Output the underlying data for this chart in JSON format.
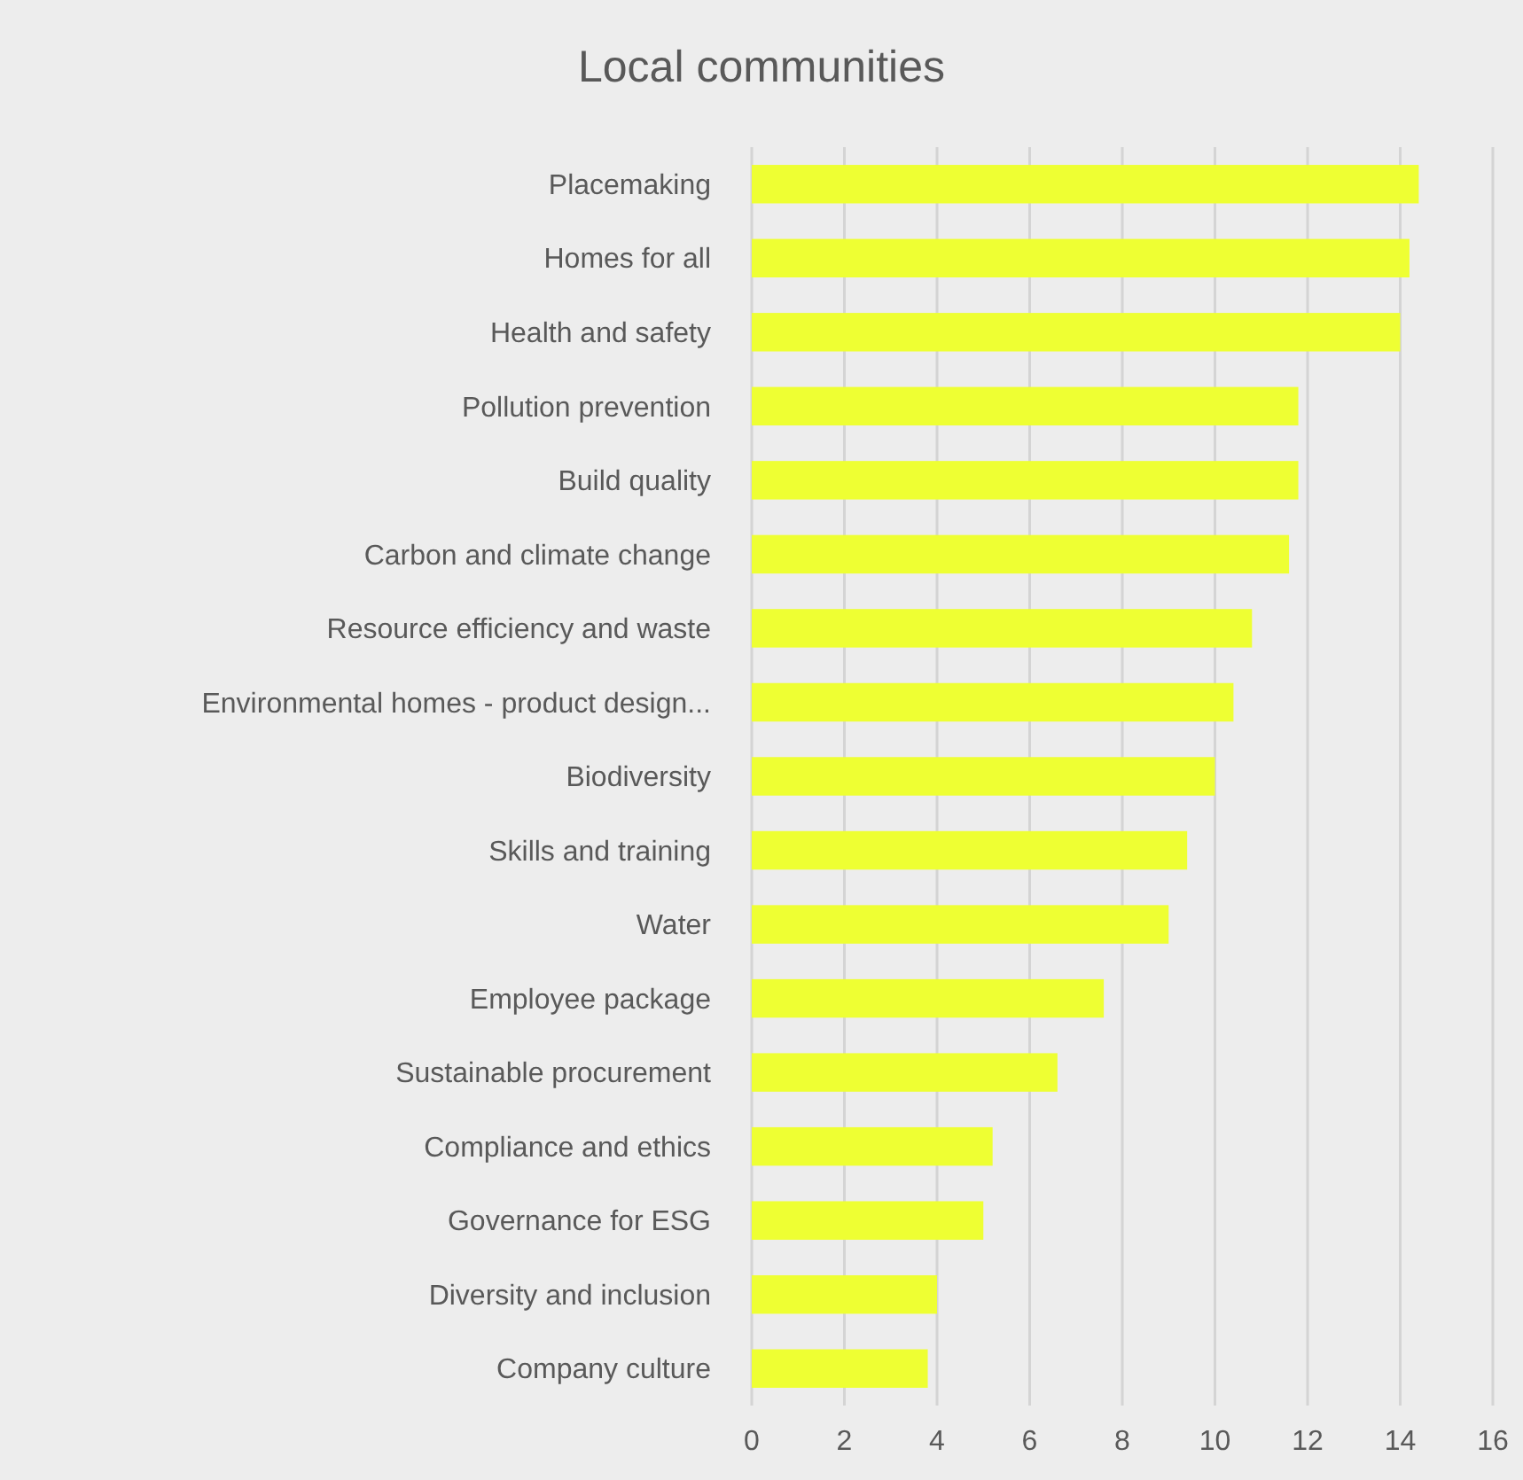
{
  "chart_data": {
    "type": "bar",
    "orientation": "horizontal",
    "title": "Local communities",
    "categories": [
      "Placemaking",
      "Homes for all",
      "Health and safety",
      "Pollution prevention",
      "Build quality",
      "Carbon and climate change",
      "Resource efficiency and waste",
      "Environmental homes - product design...",
      "Biodiversity",
      "Skills and training",
      "Water",
      "Employee package",
      "Sustainable procurement",
      "Compliance and ethics",
      "Governance for ESG",
      "Diversity and inclusion",
      "Company culture"
    ],
    "values": [
      14.4,
      14.2,
      14.0,
      11.8,
      11.8,
      11.6,
      10.8,
      10.4,
      10.0,
      9.4,
      9.0,
      7.6,
      6.6,
      5.2,
      5.0,
      4.0,
      3.8
    ],
    "color": "#eeff33",
    "xlim": [
      0,
      16
    ],
    "xticks": [
      0,
      2,
      4,
      6,
      8,
      10,
      12,
      14,
      16
    ],
    "grid": "x"
  }
}
